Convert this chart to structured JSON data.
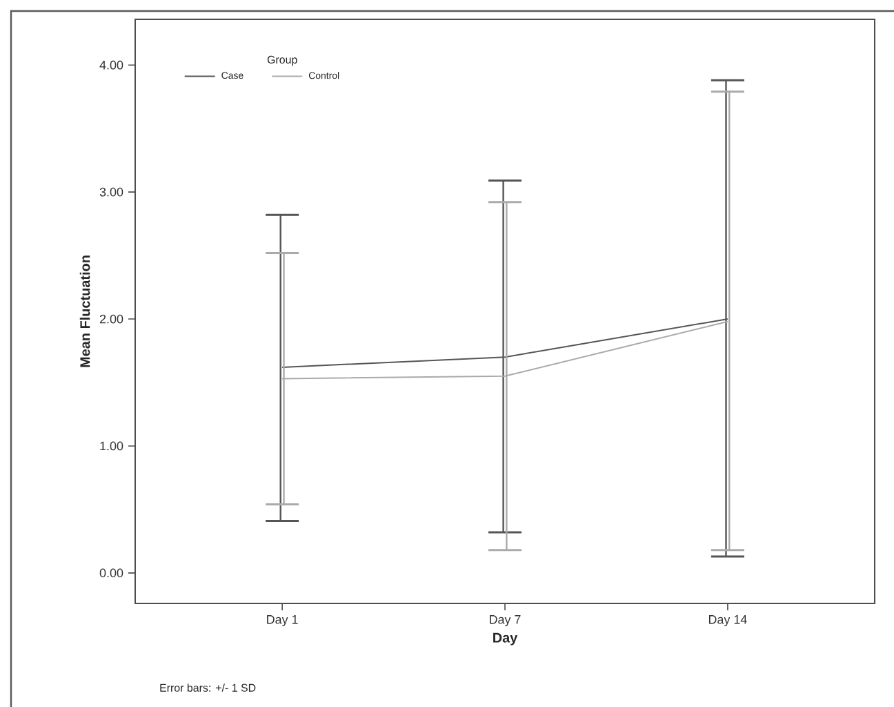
{
  "chart_data": {
    "type": "line",
    "xlabel": "Day",
    "ylabel": "Mean Fluctuation",
    "legend_title": "Group",
    "categories": [
      "Day 1",
      "Day 7",
      "Day 14"
    ],
    "series": [
      {
        "name": "Case",
        "color": "#555555",
        "values": [
          1.62,
          1.7,
          2.0
        ],
        "errors": [
          [
            0.41,
            2.82
          ],
          [
            0.32,
            3.09
          ],
          [
            0.13,
            3.88
          ]
        ]
      },
      {
        "name": "Control",
        "color": "#aaaaaa",
        "values": [
          1.53,
          1.55,
          1.98
        ],
        "errors": [
          [
            0.54,
            2.52
          ],
          [
            0.18,
            2.92
          ],
          [
            0.18,
            3.79
          ]
        ]
      }
    ],
    "ylim": [
      -0.24,
      4.36
    ],
    "yticks": [
      {
        "value": 0,
        "label": "0.00"
      },
      {
        "value": 1,
        "label": "1.00"
      },
      {
        "value": 2,
        "label": "2.00"
      },
      {
        "value": 3,
        "label": "3.00"
      },
      {
        "value": 4,
        "label": "4.00"
      }
    ],
    "legend": "top left",
    "grid": false,
    "marker": "none",
    "line_style": "solid",
    "annotations": [
      "Error bars: +/- 1 SD"
    ]
  }
}
